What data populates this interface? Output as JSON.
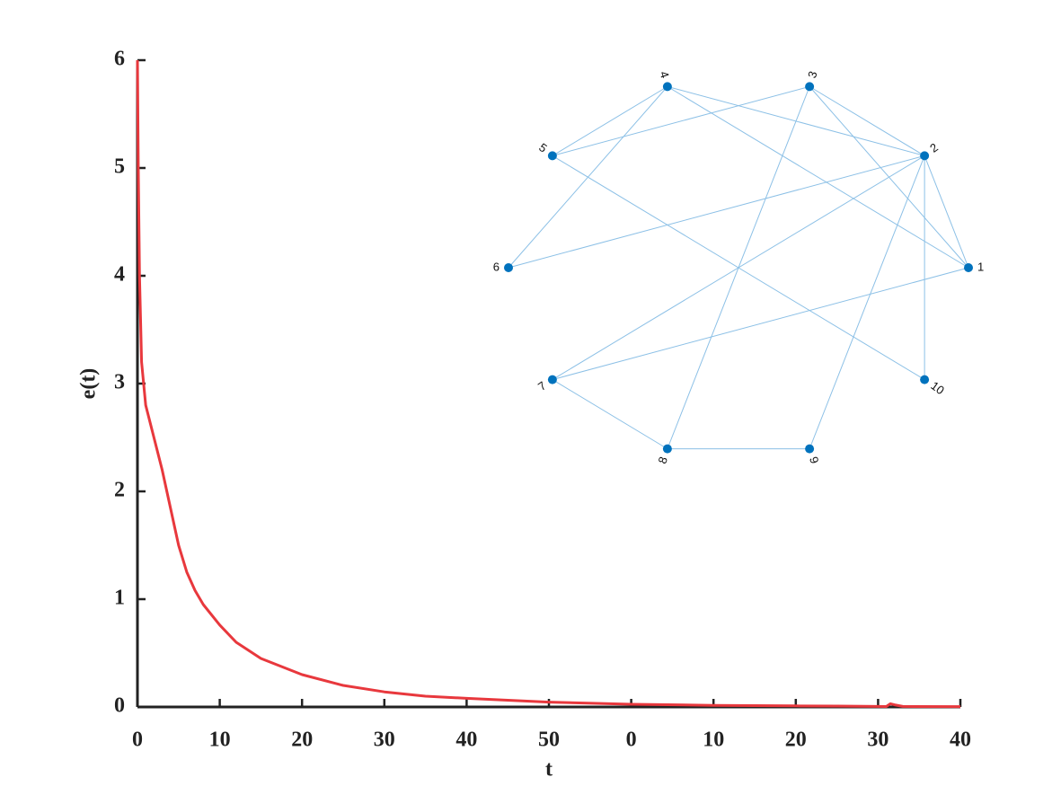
{
  "chart_data": {
    "type": "line",
    "xlabel": "t",
    "ylabel": "e(t)",
    "xlim": [
      0,
      100
    ],
    "ylim": [
      0,
      6
    ],
    "xticks": [
      0,
      10,
      20,
      30,
      40,
      50,
      {
        "value": 60,
        "label": "0"
      },
      {
        "value": 70,
        "label": "10"
      },
      {
        "value": 80,
        "label": "20"
      },
      {
        "value": 90,
        "label": "30"
      },
      {
        "value": 100,
        "label": "40"
      }
    ],
    "yticks": [
      0,
      1,
      2,
      3,
      4,
      5,
      6
    ],
    "x": [
      0,
      0.1,
      0.25,
      0.5,
      1,
      2,
      3,
      4,
      5,
      6,
      7,
      8,
      10,
      12,
      15,
      20,
      25,
      30,
      35,
      40,
      50,
      60,
      70,
      80,
      85,
      90,
      91,
      91.5,
      92,
      93,
      100
    ],
    "series": [
      {
        "color": "#e8383d",
        "values": [
          6,
          5.0,
          4.0,
          3.2,
          2.8,
          2.5,
          2.2,
          1.85,
          1.5,
          1.25,
          1.08,
          0.95,
          0.76,
          0.6,
          0.45,
          0.3,
          0.2,
          0.14,
          0.1,
          0.08,
          0.045,
          0.025,
          0.015,
          0.01,
          0.008,
          0.005,
          0.004,
          0.03,
          0.02,
          0.005,
          0.003
        ]
      }
    ],
    "graph": {
      "nodes": [
        "1",
        "2",
        "3",
        "4",
        "5",
        "6",
        "7",
        "8",
        "9",
        "10"
      ],
      "edges": [
        [
          4,
          2
        ],
        [
          4,
          1
        ],
        [
          4,
          5
        ],
        [
          4,
          6
        ],
        [
          5,
          3
        ],
        [
          5,
          10
        ],
        [
          3,
          2
        ],
        [
          3,
          1
        ],
        [
          3,
          8
        ],
        [
          2,
          1
        ],
        [
          2,
          6
        ],
        [
          2,
          7
        ],
        [
          2,
          9
        ],
        [
          2,
          10
        ],
        [
          1,
          7
        ],
        [
          7,
          8
        ],
        [
          8,
          9
        ]
      ],
      "node_color": "#0072bd",
      "edge_color": "#8cc0e6"
    }
  }
}
